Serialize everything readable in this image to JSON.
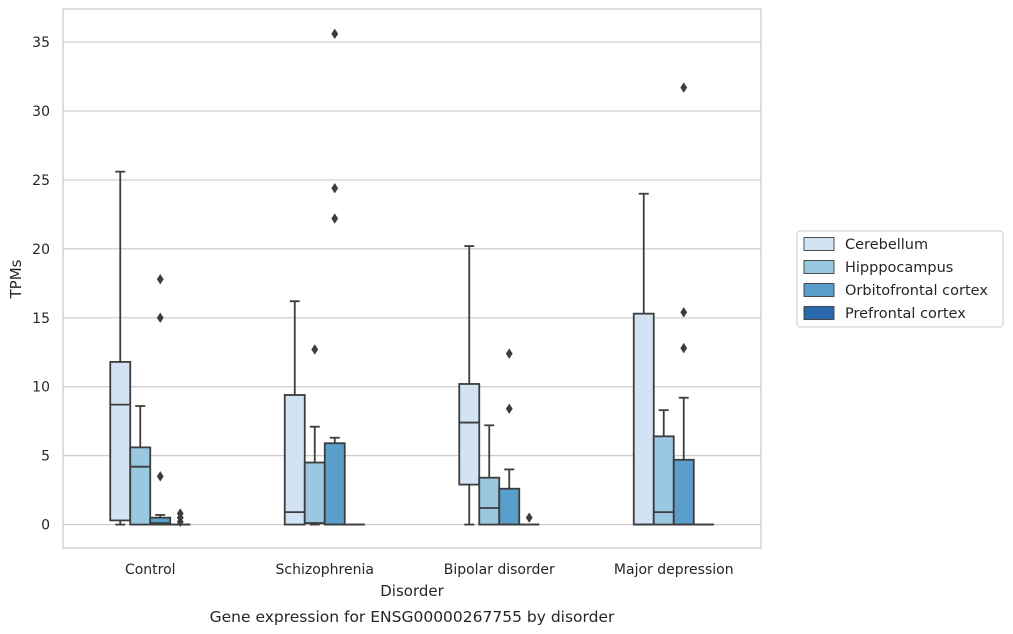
{
  "chart_data": {
    "type": "boxplot",
    "caption": "Gene expression for ENSG00000267755 by disorder",
    "xlabel": "Disorder",
    "ylabel": "TPMs",
    "ylim": [
      -1.7,
      37.4
    ],
    "yticks": [
      0,
      5,
      10,
      15,
      20,
      25,
      30,
      35
    ],
    "grid": "horizontal",
    "legend_position": "right",
    "categories": [
      "Control",
      "Schizophrenia",
      "Bipolar disorder",
      "Major depression"
    ],
    "series": [
      {
        "name": "Cerebellum",
        "color": "#d2e3f3",
        "boxes": [
          {
            "whisker_low": 0,
            "q1": 0.3,
            "median": 8.7,
            "q3": 11.8,
            "whisker_high": 25.6,
            "outliers": []
          },
          {
            "whisker_low": 0,
            "q1": 0,
            "median": 0.9,
            "q3": 9.4,
            "whisker_high": 16.2,
            "outliers": []
          },
          {
            "whisker_low": 0,
            "q1": 2.9,
            "median": 7.4,
            "q3": 10.2,
            "whisker_high": 20.2,
            "outliers": []
          },
          {
            "whisker_low": 0,
            "q1": 0,
            "median": 0,
            "q3": 15.3,
            "whisker_high": 24.0,
            "outliers": []
          }
        ]
      },
      {
        "name": "Hipppocampus",
        "color": "#9ac8e0",
        "boxes": [
          {
            "whisker_low": 0,
            "q1": 0,
            "median": 4.2,
            "q3": 5.6,
            "whisker_high": 8.6,
            "outliers": []
          },
          {
            "whisker_low": 0,
            "q1": 0.1,
            "median": 0.1,
            "q3": 4.5,
            "whisker_high": 7.1,
            "outliers": [
              12.7
            ]
          },
          {
            "whisker_low": 0,
            "q1": 0,
            "median": 1.2,
            "q3": 3.4,
            "whisker_high": 7.2,
            "outliers": []
          },
          {
            "whisker_low": 0,
            "q1": 0,
            "median": 0.9,
            "q3": 6.4,
            "whisker_high": 8.3,
            "outliers": []
          }
        ]
      },
      {
        "name": "Orbitofrontal cortex",
        "color": "#5a9fcc",
        "boxes": [
          {
            "whisker_low": 0,
            "q1": 0,
            "median": 0.1,
            "q3": 0.5,
            "whisker_high": 0.7,
            "outliers": [
              3.5,
              15.0,
              17.8
            ]
          },
          {
            "whisker_low": 0,
            "q1": 0,
            "median": 0,
            "q3": 5.9,
            "whisker_high": 6.3,
            "outliers": [
              22.2,
              24.4,
              35.6
            ]
          },
          {
            "whisker_low": 0,
            "q1": 0,
            "median": 0,
            "q3": 2.6,
            "whisker_high": 4.0,
            "outliers": [
              8.4,
              12.4
            ]
          },
          {
            "whisker_low": 0,
            "q1": 0,
            "median": 0,
            "q3": 4.7,
            "whisker_high": 9.2,
            "outliers": [
              12.8,
              15.4,
              31.7
            ]
          }
        ]
      },
      {
        "name": "Prefrontal cortex",
        "color": "#2a6aac",
        "boxes": [
          {
            "whisker_low": 0,
            "q1": 0,
            "median": 0,
            "q3": 0,
            "whisker_high": 0,
            "outliers": [
              0.2,
              0.5,
              0.8
            ]
          },
          {
            "whisker_low": 0,
            "q1": 0,
            "median": 0,
            "q3": 0,
            "whisker_high": 0,
            "outliers": []
          },
          {
            "whisker_low": 0,
            "q1": 0,
            "median": 0,
            "q3": 0,
            "whisker_high": 0,
            "outliers": [
              0.5
            ]
          },
          {
            "whisker_low": 0,
            "q1": 0,
            "median": 0,
            "q3": 0,
            "whisker_high": 0,
            "outliers": []
          }
        ]
      }
    ]
  }
}
